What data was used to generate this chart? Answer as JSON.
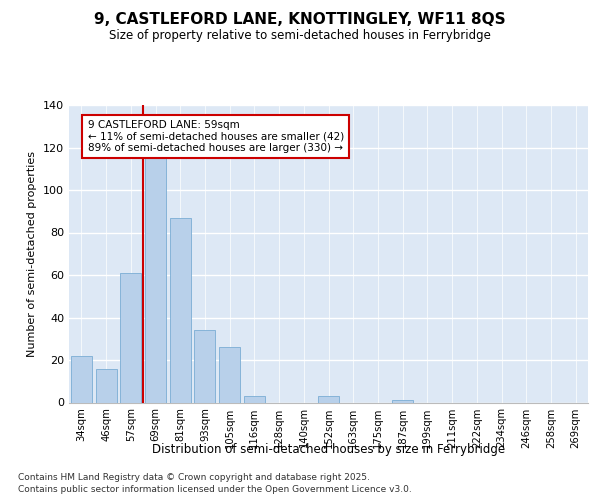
{
  "title": "9, CASTLEFORD LANE, KNOTTINGLEY, WF11 8QS",
  "subtitle": "Size of property relative to semi-detached houses in Ferrybridge",
  "xlabel": "Distribution of semi-detached houses by size in Ferrybridge",
  "ylabel": "Number of semi-detached properties",
  "property_label": "9 CASTLEFORD LANE: 59sqm",
  "smaller_pct": 11,
  "smaller_count": 42,
  "larger_pct": 89,
  "larger_count": 330,
  "categories": [
    "34sqm",
    "46sqm",
    "57sqm",
    "69sqm",
    "81sqm",
    "93sqm",
    "105sqm",
    "116sqm",
    "128sqm",
    "140sqm",
    "152sqm",
    "163sqm",
    "175sqm",
    "187sqm",
    "199sqm",
    "211sqm",
    "222sqm",
    "234sqm",
    "246sqm",
    "258sqm",
    "269sqm"
  ],
  "values": [
    22,
    16,
    61,
    117,
    87,
    34,
    26,
    3,
    0,
    0,
    3,
    0,
    0,
    1,
    0,
    0,
    0,
    0,
    0,
    0,
    0
  ],
  "bar_color": "#b8d0ea",
  "bar_edge_color": "#7aadd4",
  "vline_color": "#cc0000",
  "vline_x_index": 3,
  "annotation_box_color": "#cc0000",
  "background_color": "#dde8f5",
  "ylim": [
    0,
    140
  ],
  "yticks": [
    0,
    20,
    40,
    60,
    80,
    100,
    120,
    140
  ],
  "footer_line1": "Contains HM Land Registry data © Crown copyright and database right 2025.",
  "footer_line2": "Contains public sector information licensed under the Open Government Licence v3.0."
}
